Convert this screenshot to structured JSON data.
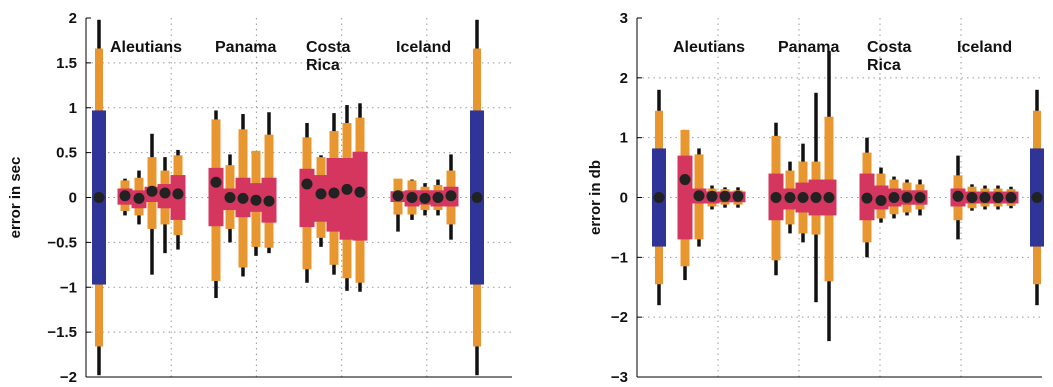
{
  "colors": {
    "whisker": "#111111",
    "outer_box": "#e8962f",
    "inner_box": "#d4365f",
    "reference_box": "#2f3596",
    "median_dot": "#222222",
    "grid": "#999999"
  },
  "chart_data": [
    {
      "type": "boxplot",
      "ylabel": "error in sec",
      "ylim": [
        -2,
        2
      ],
      "yticks": [
        -2,
        -1.5,
        -1,
        -0.5,
        0,
        0.5,
        1,
        1.5,
        2
      ],
      "ytick_labels": [
        "−2",
        "−1.5",
        "−1",
        "−0.5",
        "0",
        "0.5",
        "1",
        "1.5",
        "2"
      ],
      "grid": "dotted",
      "annotations": [
        {
          "lines": [
            "Aleutians"
          ]
        },
        {
          "lines": [
            "Panama"
          ]
        },
        {
          "lines": [
            "Costa",
            "Rica"
          ]
        },
        {
          "lines": [
            "Iceland"
          ]
        }
      ],
      "boxes": [
        {
          "group": "reference",
          "median": 0.0,
          "inner": [
            -0.97,
            0.97
          ],
          "outer": [
            -1.66,
            1.66
          ],
          "whisker": [
            -1.98,
            1.98
          ],
          "inner_color": "reference"
        },
        {
          "group": "Aleutians",
          "median": 0.02,
          "inner": [
            -0.08,
            0.1
          ],
          "outer": [
            -0.15,
            0.19
          ],
          "whisker": [
            -0.2,
            0.21
          ]
        },
        {
          "group": "Aleutians",
          "median": -0.01,
          "inner": [
            -0.12,
            0.08
          ],
          "outer": [
            -0.2,
            0.22
          ],
          "whisker": [
            -0.3,
            0.3
          ]
        },
        {
          "group": "Aleutians",
          "median": 0.07,
          "inner": [
            -0.05,
            0.12
          ],
          "outer": [
            -0.35,
            0.45
          ],
          "whisker": [
            -0.86,
            0.71
          ]
        },
        {
          "group": "Aleutians",
          "median": 0.05,
          "inner": [
            -0.12,
            0.15
          ],
          "outer": [
            -0.3,
            0.3
          ],
          "whisker": [
            -0.62,
            0.45
          ]
        },
        {
          "group": "Aleutians",
          "median": 0.04,
          "inner": [
            -0.25,
            0.25
          ],
          "outer": [
            -0.42,
            0.47
          ],
          "whisker": [
            -0.58,
            0.53
          ]
        },
        {
          "group": "Panama",
          "median": 0.17,
          "inner": [
            -0.32,
            0.33
          ],
          "outer": [
            -0.93,
            0.87
          ],
          "whisker": [
            -1.12,
            0.97
          ]
        },
        {
          "group": "Panama",
          "median": 0.0,
          "inner": [
            -0.14,
            0.1
          ],
          "outer": [
            -0.35,
            0.36
          ],
          "whisker": [
            -0.5,
            0.48
          ]
        },
        {
          "group": "Panama",
          "median": -0.01,
          "inner": [
            -0.22,
            0.22
          ],
          "outer": [
            -0.78,
            0.76
          ],
          "whisker": [
            -0.88,
            0.93
          ]
        },
        {
          "group": "Panama",
          "median": -0.03,
          "inner": [
            -0.16,
            0.16
          ],
          "outer": [
            -0.55,
            0.52
          ],
          "whisker": [
            -0.65,
            0.5
          ]
        },
        {
          "group": "Panama",
          "median": -0.04,
          "inner": [
            -0.28,
            0.22
          ],
          "outer": [
            -0.56,
            0.7
          ],
          "whisker": [
            -0.62,
            0.95
          ]
        },
        {
          "group": "Costa Rica",
          "median": 0.15,
          "inner": [
            -0.33,
            0.32
          ],
          "outer": [
            -0.8,
            0.67
          ],
          "whisker": [
            -0.95,
            0.83
          ]
        },
        {
          "group": "Costa Rica",
          "median": 0.04,
          "inner": [
            -0.27,
            0.25
          ],
          "outer": [
            -0.45,
            0.45
          ],
          "whisker": [
            -0.55,
            0.47
          ]
        },
        {
          "group": "Costa Rica",
          "median": 0.05,
          "inner": [
            -0.38,
            0.44
          ],
          "outer": [
            -0.75,
            0.74
          ],
          "whisker": [
            -0.86,
            0.94
          ]
        },
        {
          "group": "Costa Rica",
          "median": 0.09,
          "inner": [
            -0.47,
            0.44
          ],
          "outer": [
            -0.9,
            0.83
          ],
          "whisker": [
            -1.04,
            1.03
          ]
        },
        {
          "group": "Costa Rica",
          "median": 0.06,
          "inner": [
            -0.48,
            0.51
          ],
          "outer": [
            -0.95,
            0.89
          ],
          "whisker": [
            -1.05,
            1.05
          ]
        },
        {
          "group": "Iceland",
          "median": 0.02,
          "inner": [
            -0.05,
            0.07
          ],
          "outer": [
            -0.19,
            0.21
          ],
          "whisker": [
            -0.38,
            0.2
          ]
        },
        {
          "group": "Iceland",
          "median": 0.0,
          "inner": [
            -0.1,
            0.08
          ],
          "outer": [
            -0.19,
            0.19
          ],
          "whisker": [
            -0.25,
            0.2
          ]
        },
        {
          "group": "Iceland",
          "median": -0.01,
          "inner": [
            -0.08,
            0.08
          ],
          "outer": [
            -0.14,
            0.12
          ],
          "whisker": [
            -0.2,
            0.16
          ]
        },
        {
          "group": "Iceland",
          "median": 0.0,
          "inner": [
            -0.1,
            0.08
          ],
          "outer": [
            -0.14,
            0.14
          ],
          "whisker": [
            -0.2,
            0.2
          ]
        },
        {
          "group": "Iceland",
          "median": 0.02,
          "inner": [
            -0.1,
            0.12
          ],
          "outer": [
            -0.3,
            0.3
          ],
          "whisker": [
            -0.47,
            0.48
          ]
        },
        {
          "group": "reference",
          "median": 0.0,
          "inner": [
            -0.97,
            0.97
          ],
          "outer": [
            -1.66,
            1.66
          ],
          "whisker": [
            -1.98,
            1.98
          ],
          "inner_color": "reference"
        }
      ]
    },
    {
      "type": "boxplot",
      "ylabel": "error in db",
      "ylim": [
        -3,
        3
      ],
      "yticks": [
        -3,
        -2,
        -1,
        0,
        1,
        2,
        3
      ],
      "ytick_labels": [
        "−3",
        "−2",
        "−1",
        "0",
        "1",
        "2",
        "3"
      ],
      "grid": "dotted",
      "annotations": [
        {
          "lines": [
            "Aleutians"
          ]
        },
        {
          "lines": [
            "Panama"
          ]
        },
        {
          "lines": [
            "Costa",
            "Rica"
          ]
        },
        {
          "lines": [
            "Iceland"
          ]
        }
      ],
      "boxes": [
        {
          "group": "reference",
          "median": 0.0,
          "inner": [
            -0.82,
            0.82
          ],
          "outer": [
            -1.45,
            1.45
          ],
          "whisker": [
            -1.8,
            1.8
          ],
          "inner_color": "reference"
        },
        {
          "group": "Aleutians",
          "median": 0.3,
          "inner": [
            -0.7,
            0.7
          ],
          "outer": [
            -1.15,
            1.13
          ],
          "whisker": [
            -1.38,
            1.13
          ]
        },
        {
          "group": "Aleutians",
          "median": 0.03,
          "inner": [
            -0.1,
            0.15
          ],
          "outer": [
            -0.7,
            0.72
          ],
          "whisker": [
            -0.82,
            0.82
          ]
        },
        {
          "group": "Aleutians",
          "median": 0.02,
          "inner": [
            -0.1,
            0.1
          ],
          "outer": [
            -0.15,
            0.15
          ],
          "whisker": [
            -0.2,
            0.2
          ]
        },
        {
          "group": "Aleutians",
          "median": 0.02,
          "inner": [
            -0.08,
            0.1
          ],
          "outer": [
            -0.12,
            0.14
          ],
          "whisker": [
            -0.17,
            0.17
          ]
        },
        {
          "group": "Aleutians",
          "median": 0.02,
          "inner": [
            -0.08,
            0.1
          ],
          "outer": [
            -0.12,
            0.12
          ],
          "whisker": [
            -0.17,
            0.17
          ]
        },
        {
          "group": "Panama",
          "median": 0.0,
          "inner": [
            -0.38,
            0.4
          ],
          "outer": [
            -1.05,
            1.03
          ],
          "whisker": [
            -1.3,
            1.25
          ]
        },
        {
          "group": "Panama",
          "median": 0.0,
          "inner": [
            -0.2,
            0.15
          ],
          "outer": [
            -0.45,
            0.45
          ],
          "whisker": [
            -0.6,
            0.6
          ]
        },
        {
          "group": "Panama",
          "median": 0.0,
          "inner": [
            -0.25,
            0.25
          ],
          "outer": [
            -0.6,
            0.6
          ],
          "whisker": [
            -0.75,
            0.9
          ]
        },
        {
          "group": "Panama",
          "median": 0.0,
          "inner": [
            -0.3,
            0.3
          ],
          "outer": [
            -0.62,
            0.6
          ],
          "whisker": [
            -1.75,
            1.75
          ]
        },
        {
          "group": "Panama",
          "median": 0.0,
          "inner": [
            -0.3,
            0.3
          ],
          "outer": [
            -1.4,
            1.35
          ],
          "whisker": [
            -2.4,
            2.45
          ]
        },
        {
          "group": "Costa Rica",
          "median": -0.01,
          "inner": [
            -0.38,
            0.4
          ],
          "outer": [
            -0.75,
            0.75
          ],
          "whisker": [
            -1.0,
            1.0
          ]
        },
        {
          "group": "Costa Rica",
          "median": -0.05,
          "inner": [
            -0.2,
            0.2
          ],
          "outer": [
            -0.35,
            0.4
          ],
          "whisker": [
            -0.42,
            0.5
          ]
        },
        {
          "group": "Costa Rica",
          "median": 0.0,
          "inner": [
            -0.15,
            0.15
          ],
          "outer": [
            -0.28,
            0.3
          ],
          "whisker": [
            -0.35,
            0.35
          ]
        },
        {
          "group": "Costa Rica",
          "median": 0.0,
          "inner": [
            -0.12,
            0.12
          ],
          "outer": [
            -0.25,
            0.25
          ],
          "whisker": [
            -0.3,
            0.3
          ]
        },
        {
          "group": "Costa Rica",
          "median": 0.0,
          "inner": [
            -0.12,
            0.12
          ],
          "outer": [
            -0.2,
            0.22
          ],
          "whisker": [
            -0.3,
            0.3
          ]
        },
        {
          "group": "Iceland",
          "median": 0.02,
          "inner": [
            -0.15,
            0.15
          ],
          "outer": [
            -0.38,
            0.37
          ],
          "whisker": [
            -0.7,
            0.7
          ]
        },
        {
          "group": "Iceland",
          "median": 0.0,
          "inner": [
            -0.1,
            0.1
          ],
          "outer": [
            -0.18,
            0.18
          ],
          "whisker": [
            -0.22,
            0.22
          ]
        },
        {
          "group": "Iceland",
          "median": 0.0,
          "inner": [
            -0.1,
            0.1
          ],
          "outer": [
            -0.15,
            0.15
          ],
          "whisker": [
            -0.2,
            0.2
          ]
        },
        {
          "group": "Iceland",
          "median": 0.0,
          "inner": [
            -0.1,
            0.1
          ],
          "outer": [
            -0.15,
            0.15
          ],
          "whisker": [
            -0.2,
            0.2
          ]
        },
        {
          "group": "Iceland",
          "median": 0.0,
          "inner": [
            -0.1,
            0.1
          ],
          "outer": [
            -0.14,
            0.14
          ],
          "whisker": [
            -0.18,
            0.18
          ]
        },
        {
          "group": "reference",
          "median": 0.0,
          "inner": [
            -0.82,
            0.82
          ],
          "outer": [
            -1.45,
            1.45
          ],
          "whisker": [
            -1.8,
            1.8
          ],
          "inner_color": "reference"
        }
      ]
    }
  ]
}
